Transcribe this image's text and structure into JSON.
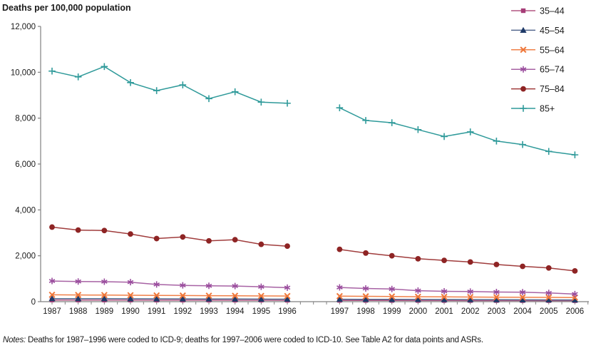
{
  "chart_data": {
    "type": "line",
    "title": "Deaths per 100,000 population",
    "ylabel": "Deaths per 100,000 population",
    "xlabel": "",
    "ylim": [
      0,
      12000
    ],
    "grid": false,
    "legend_position": "top-right",
    "yticks": [
      {
        "value": 0,
        "label": "0"
      },
      {
        "value": 2000,
        "label": "2,000"
      },
      {
        "value": 4000,
        "label": "4,000"
      },
      {
        "value": 6000,
        "label": "6,000"
      },
      {
        "value": 8000,
        "label": "8,000"
      },
      {
        "value": 10000,
        "label": "10,000"
      },
      {
        "value": 12000,
        "label": "12,000"
      }
    ],
    "x_axis": {
      "segments": [
        {
          "name": "ICD-9",
          "years": [
            "1987",
            "1988",
            "1989",
            "1990",
            "1991",
            "1992",
            "1993",
            "1994",
            "1995",
            "1996"
          ]
        },
        {
          "name": "ICD-10",
          "years": [
            "1997",
            "1998",
            "1999",
            "2000",
            "2001",
            "2002",
            "2003",
            "2004",
            "2005",
            "2006"
          ]
        }
      ],
      "gap_between_segments_slots": 2
    },
    "series": [
      {
        "name": "35–44",
        "marker": "square",
        "line_color": "#b25682",
        "marker_color": "#a63d78",
        "values_icd9": [
          70,
          69,
          68,
          67,
          66,
          65,
          64,
          63,
          62,
          60
        ],
        "values_icd10": [
          55,
          53,
          52,
          50,
          49,
          48,
          47,
          46,
          44,
          42
        ]
      },
      {
        "name": "45–54",
        "marker": "triangle",
        "line_color": "#54688e",
        "marker_color": "#1f3a68",
        "values_icd9": [
          135,
          133,
          131,
          128,
          125,
          122,
          119,
          116,
          113,
          110
        ],
        "values_icd10": [
          105,
          101,
          98,
          95,
          92,
          89,
          86,
          82,
          79,
          76
        ]
      },
      {
        "name": "55–64",
        "marker": "x",
        "line_color": "#f08048",
        "marker_color": "#ef7739",
        "values_icd9": [
          300,
          293,
          287,
          280,
          272,
          266,
          260,
          255,
          250,
          245
        ],
        "values_icd10": [
          240,
          232,
          225,
          215,
          208,
          202,
          196,
          190,
          185,
          180
        ]
      },
      {
        "name": "65–74",
        "marker": "asterisk",
        "line_color": "#a762a4",
        "marker_color": "#9a4d9e",
        "values_icd9": [
          900,
          880,
          870,
          850,
          750,
          710,
          690,
          680,
          650,
          610
        ],
        "values_icd10": [
          620,
          575,
          550,
          480,
          450,
          440,
          420,
          410,
          380,
          330
        ]
      },
      {
        "name": "75–84",
        "marker": "circle",
        "line_color": "#a03c3c",
        "marker_color": "#8e2424",
        "values_icd9": [
          3250,
          3120,
          3100,
          2950,
          2750,
          2820,
          2650,
          2700,
          2500,
          2420
        ],
        "values_icd10": [
          2280,
          2120,
          2000,
          1870,
          1800,
          1730,
          1620,
          1540,
          1470,
          1340
        ]
      },
      {
        "name": "85+",
        "marker": "plus",
        "line_color": "#2f9a9a",
        "marker_color": "#2f9a9a",
        "values_icd9": [
          10050,
          9800,
          10250,
          9550,
          9200,
          9450,
          8850,
          9150,
          8700,
          8650
        ],
        "values_icd10": [
          8450,
          7900,
          7800,
          7500,
          7200,
          7400,
          7000,
          6850,
          6550,
          6400
        ]
      }
    ],
    "colors": {
      "axis": "#808080",
      "text": "#1a1a1a"
    },
    "notes_prefix": "Notes:",
    "notes_text": " Deaths for 1987–1996 were coded to ICD-9; deaths for 1997–2006 were coded to ICD-10. See Table A2 for data points and ASRs."
  }
}
